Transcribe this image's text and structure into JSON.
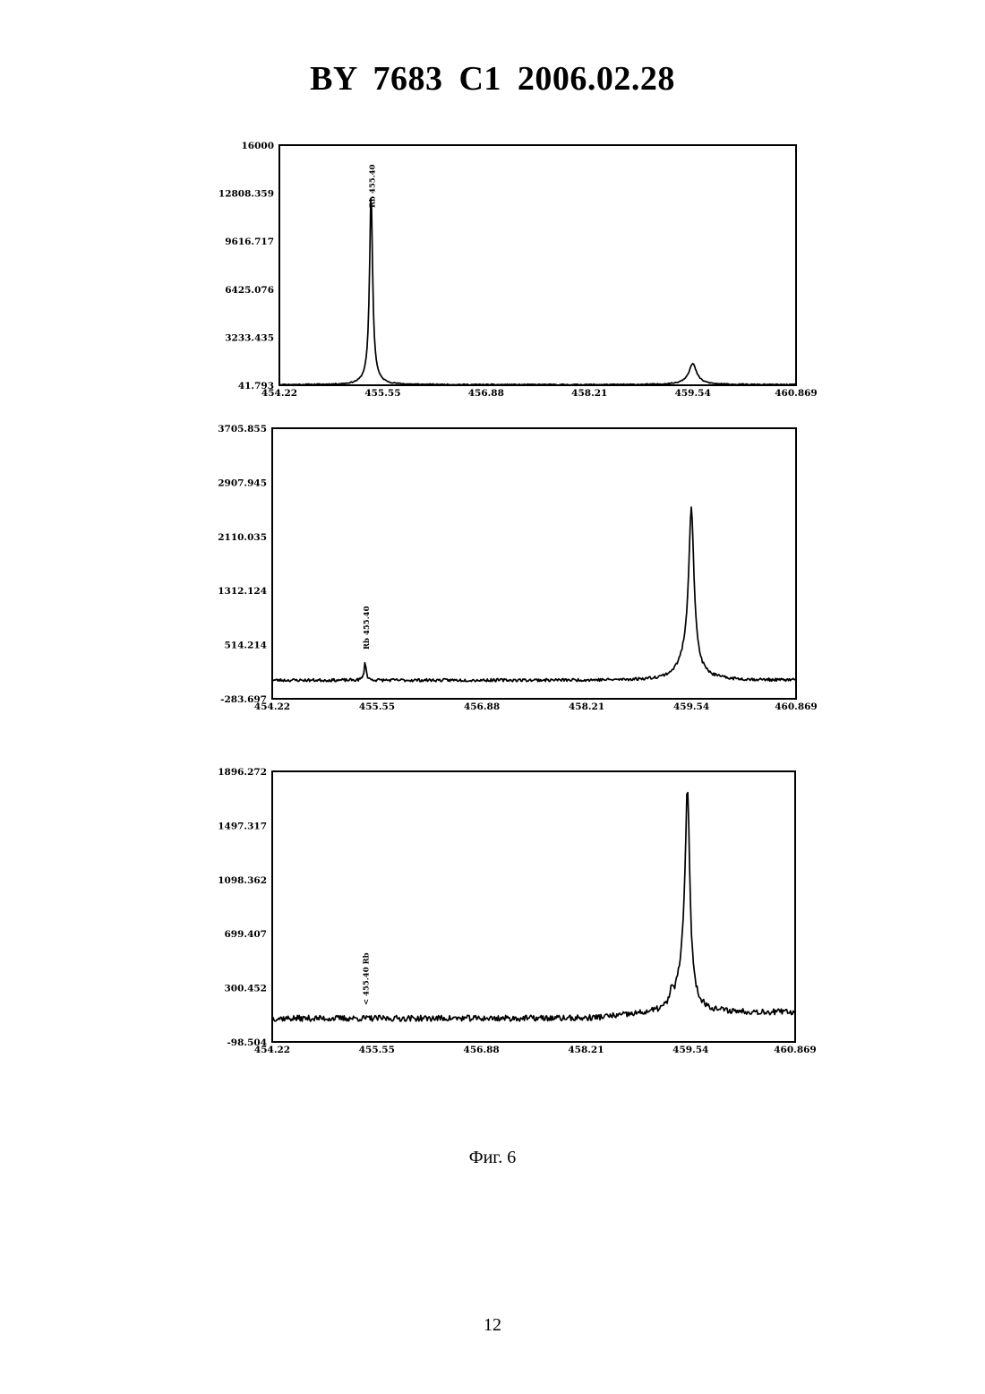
{
  "document": {
    "header": "BY 7683 C1 2006.02.28",
    "figure_caption": "Фиг. 6",
    "page_number": "12"
  },
  "chart_data": [
    {
      "type": "line",
      "title": "",
      "xlabel": "",
      "ylabel": "",
      "xlim": [
        454.22,
        460.869
      ],
      "ylim": [
        41.793,
        16000
      ],
      "x_ticks": [
        "454.22",
        "455.55",
        "456.88",
        "458.21",
        "459.54",
        "460.869"
      ],
      "y_ticks": [
        "41.793",
        "3233.435",
        "6425.076",
        "9616.717",
        "12808.359",
        "16000"
      ],
      "grid": false,
      "peak_label": {
        "text": "Rb 455.40",
        "x": 455.4
      },
      "series": [
        {
          "baseline": 80,
          "noise": 35,
          "seed": 11,
          "peaks": [
            [
              455.4,
              11900,
              0.022
            ],
            [
              455.4,
              1000,
              0.07
            ],
            [
              459.54,
              1150,
              0.055
            ],
            [
              459.52,
              250,
              0.13
            ]
          ]
        }
      ]
    },
    {
      "type": "line",
      "title": "",
      "xlabel": "",
      "ylabel": "",
      "xlim": [
        454.22,
        460.869
      ],
      "ylim": [
        -283.697,
        3705.855
      ],
      "x_ticks": [
        "454.22",
        "455.55",
        "456.88",
        "458.21",
        "459.54",
        "460.869"
      ],
      "y_ticks": [
        "-283.697",
        "514.214",
        "1312.124",
        "2110.035",
        "2907.945",
        "3705.855"
      ],
      "grid": false,
      "peak_label": {
        "text": "Rb 455.40",
        "x": 455.4
      },
      "series": [
        {
          "baseline": -10,
          "noise": 22,
          "seed": 23,
          "peaks": [
            [
              455.4,
              260,
              0.016
            ],
            [
              459.54,
              2250,
              0.04
            ],
            [
              459.5,
              330,
              0.13
            ]
          ]
        }
      ]
    },
    {
      "type": "line",
      "title": "",
      "xlabel": "",
      "ylabel": "",
      "xlim": [
        454.22,
        460.869
      ],
      "ylim": [
        -98.504,
        1896.272
      ],
      "x_ticks": [
        "454.22",
        "455.55",
        "456.88",
        "458.21",
        "459.54",
        "460.869"
      ],
      "y_ticks": [
        "-98.504",
        "300.452",
        "699.407",
        "1098.362",
        "1497.317",
        "1896.272"
      ],
      "grid": false,
      "peak_label": {
        "text": "< 455.40 Rb",
        "x": 455.4
      },
      "series": [
        {
          "baseline": 75,
          "noise": 22,
          "seed": 37,
          "ramp": [
            458.21,
            459.3,
            45
          ],
          "peaks": [
            [
              459.5,
              1450,
              0.035
            ],
            [
              459.45,
              260,
              0.1
            ],
            [
              459.3,
              90,
              0.018
            ]
          ]
        }
      ]
    }
  ]
}
